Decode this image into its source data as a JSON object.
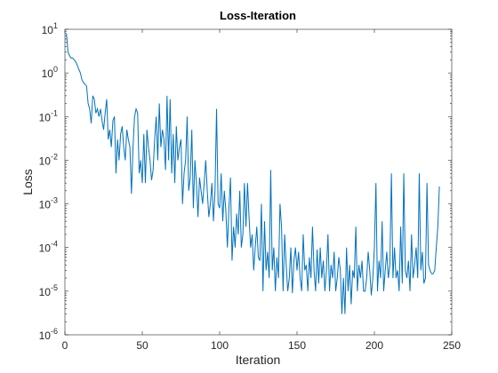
{
  "chart_data": {
    "type": "line",
    "title": "Loss-Iteration",
    "xlabel": "Iteration",
    "ylabel": "Loss",
    "log_y": true,
    "color": "#0072bd",
    "xlim": [
      0,
      250
    ],
    "xticks": [
      0,
      50,
      100,
      150,
      200,
      250
    ],
    "ylim": [
      1e-06,
      10
    ],
    "yticks": [
      {
        "value": 1e-06,
        "label": "10",
        "exponent": "-6"
      },
      {
        "value": 1e-05,
        "label": "10",
        "exponent": "-5"
      },
      {
        "value": 0.0001,
        "label": "10",
        "exponent": "-4"
      },
      {
        "value": 0.001,
        "label": "10",
        "exponent": "-3"
      },
      {
        "value": 0.01,
        "label": "10",
        "exponent": "-2"
      },
      {
        "value": 0.1,
        "label": "10",
        "exponent": "-1"
      },
      {
        "value": 1,
        "label": "10",
        "exponent": "0"
      },
      {
        "value": 10,
        "label": "10",
        "exponent": "1"
      }
    ],
    "x": [
      1,
      2,
      3,
      4,
      5,
      6,
      7,
      8,
      9,
      10,
      11,
      12,
      13,
      14,
      15,
      16,
      17,
      18,
      19,
      20,
      21,
      22,
      23,
      24,
      25,
      26,
      27,
      28,
      29,
      30,
      31,
      32,
      33,
      34,
      35,
      36,
      37,
      38,
      39,
      40,
      41,
      42,
      43,
      44,
      45,
      46,
      47,
      48,
      49,
      50,
      51,
      52,
      53,
      54,
      55,
      56,
      57,
      58,
      59,
      60,
      61,
      62,
      63,
      64,
      65,
      66,
      67,
      68,
      69,
      70,
      71,
      72,
      73,
      74,
      75,
      76,
      77,
      78,
      79,
      80,
      81,
      82,
      83,
      84,
      85,
      86,
      87,
      88,
      89,
      90,
      91,
      92,
      93,
      94,
      95,
      96,
      97,
      98,
      99,
      100,
      101,
      102,
      103,
      104,
      105,
      106,
      107,
      108,
      109,
      110,
      111,
      112,
      113,
      114,
      115,
      116,
      117,
      118,
      119,
      120,
      121,
      122,
      123,
      124,
      125,
      126,
      127,
      128,
      129,
      130,
      131,
      132,
      133,
      134,
      135,
      136,
      137,
      138,
      139,
      140,
      141,
      142,
      143,
      144,
      145,
      146,
      147,
      148,
      149,
      150,
      151,
      152,
      153,
      154,
      155,
      156,
      157,
      158,
      159,
      160,
      161,
      162,
      163,
      164,
      165,
      166,
      167,
      168,
      169,
      170,
      171,
      172,
      173,
      174,
      175,
      176,
      177,
      178,
      179,
      180,
      181,
      182,
      183,
      184,
      185,
      186,
      187,
      188,
      189,
      190,
      191,
      192,
      193,
      194,
      195,
      196,
      197,
      198,
      199,
      200,
      201,
      202,
      203,
      204,
      205,
      206,
      207,
      208,
      209,
      210,
      211,
      212,
      213,
      214,
      215,
      216,
      217,
      218,
      219,
      220,
      221,
      222,
      223,
      224,
      225,
      226,
      227,
      228,
      229,
      230,
      231,
      232,
      233,
      234,
      235,
      236,
      237,
      238,
      239,
      240,
      241,
      242
    ],
    "values": [
      8,
      3,
      2.5,
      2.2,
      2.2,
      2.0,
      1.8,
      1.5,
      1.2,
      1.0,
      0.7,
      0.6,
      0.55,
      0.5,
      0.2,
      0.15,
      0.07,
      0.3,
      0.25,
      0.12,
      0.15,
      0.1,
      0.15,
      0.08,
      0.05,
      0.12,
      0.25,
      0.03,
      0.05,
      0.02,
      0.08,
      0.1,
      0.005,
      0.03,
      0.01,
      0.04,
      0.06,
      0.02,
      0.01,
      0.05,
      0.03,
      0.02,
      0.0017,
      0.02,
      0.1,
      0.15,
      0.12,
      0.005,
      0.01,
      0.003,
      0.04,
      0.003,
      0.05,
      0.02,
      0.01,
      0.0035,
      0.006,
      0.03,
      0.1,
      0.01,
      0.2,
      0.02,
      0.05,
      0.03,
      0.006,
      0.3,
      0.01,
      0.25,
      0.005,
      0.04,
      0.003,
      0.06,
      0.01,
      0.02,
      0.03,
      0.001,
      0.005,
      0.01,
      0.1,
      0.002,
      0.004,
      0.05,
      0.0008,
      0.01,
      0.003,
      0.0005,
      0.004,
      0.002,
      0.001,
      0.003,
      0.01,
      0.002,
      0.0005,
      0.001,
      0.003,
      0.0004,
      0.002,
      0.15,
      0.001,
      0.0008,
      0.005,
      0.0004,
      0.002,
      0.0007,
      0.0001,
      0.0008,
      0.004,
      5e-05,
      0.0003,
      0.0001,
      0.0006,
      0.0002,
      0.002,
      0.0001,
      0.0002,
      0.003,
      0.0003,
      0.003,
      0.0005,
      0.0001,
      0.0002,
      3e-05,
      0.0001,
      0.0003,
      6e-05,
      5e-05,
      0.001,
      1e-05,
      0.0004,
      3e-05,
      8e-05,
      2e-05,
      0.006,
      3e-05,
      0.0001,
      1e-05,
      6e-05,
      2e-05,
      0.001,
      0.0003,
      1e-05,
      0.0002,
      4e-05,
      1e-05,
      2e-05,
      0.0001,
      9e-06,
      5e-05,
      0.0001,
      3e-05,
      8e-05,
      2e-05,
      1e-05,
      0.0002,
      3e-05,
      4e-05,
      1e-05,
      6e-05,
      2e-05,
      0.0003,
      3e-05,
      1e-05,
      9e-05,
      1.5e-05,
      0.0001,
      2e-05,
      5e-05,
      1e-05,
      3e-05,
      0.0002,
      1e-05,
      4e-05,
      2e-05,
      8e-05,
      1e-05,
      2e-05,
      6e-05,
      3e-05,
      3e-06,
      2e-05,
      3e-06,
      0.0001,
      1e-05,
      4e-05,
      5e-06,
      3e-05,
      2e-05,
      0.0003,
      1e-05,
      4e-05,
      2e-05,
      5e-05,
      1e-05,
      1e-05,
      2e-05,
      8e-05,
      3e-05,
      8e-06,
      2e-05,
      0.0001,
      0.003,
      1e-05,
      5e-05,
      2e-05,
      0.0004,
      1e-05,
      3e-05,
      8e-05,
      2e-05,
      4e-05,
      0.005,
      2e-05,
      0.0001,
      2e-05,
      3e-05,
      1e-05,
      0.0003,
      1.5e-05,
      0.005,
      3e-05,
      2e-05,
      5e-05,
      1e-05,
      0.0002,
      2e-05,
      4e-05,
      0.0001,
      2e-05,
      0.005,
      3e-05,
      8e-05,
      1.5e-05,
      2e-05,
      0.003,
      4e-05,
      3e-05,
      2.5e-05,
      2.5e-05,
      3e-05,
      0.0001,
      0.0003,
      0.0025
    ]
  }
}
